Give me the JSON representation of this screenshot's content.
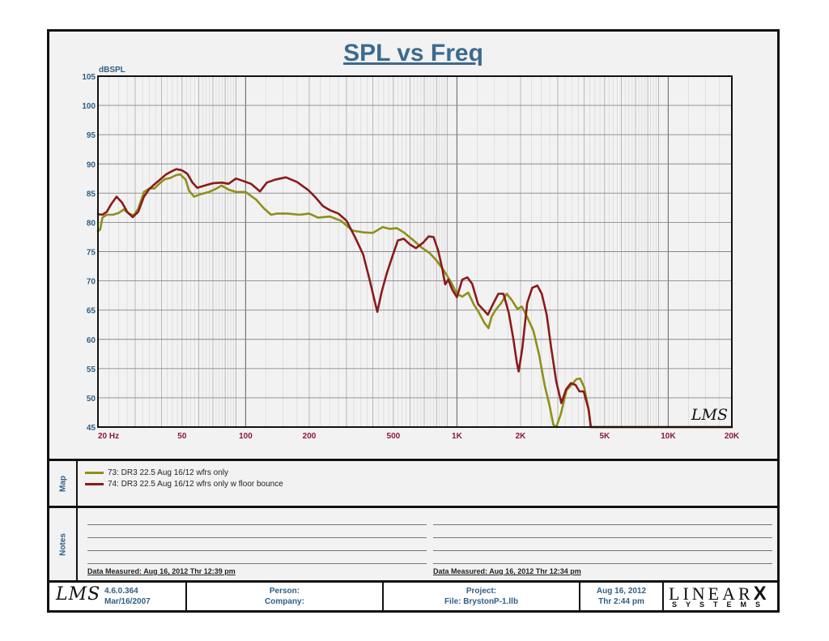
{
  "chart_data": {
    "type": "line",
    "title": "SPL vs Freq",
    "ylabel": "dBSPL",
    "xlabel": "",
    "x_scale": "log",
    "xlim": [
      20,
      20000
    ],
    "ylim": [
      45,
      105
    ],
    "grid": true,
    "x_ticks": [
      {
        "value": 20,
        "label": "20  Hz"
      },
      {
        "value": 50,
        "label": "50"
      },
      {
        "value": 100,
        "label": "100"
      },
      {
        "value": 200,
        "label": "200"
      },
      {
        "value": 500,
        "label": "500"
      },
      {
        "value": 1000,
        "label": "1K"
      },
      {
        "value": 2000,
        "label": "2K"
      },
      {
        "value": 5000,
        "label": "5K"
      },
      {
        "value": 10000,
        "label": "10K"
      },
      {
        "value": 20000,
        "label": "20K"
      }
    ],
    "y_ticks": [
      45,
      50,
      55,
      60,
      65,
      70,
      75,
      80,
      85,
      90,
      95,
      100,
      105
    ],
    "series": [
      {
        "name": "73: DR3 22.5 Aug 16/12 wfrs only",
        "color": "#8f8f1a",
        "points": [
          [
            20,
            78.5
          ],
          [
            20.5,
            78.8
          ],
          [
            21,
            80.8
          ],
          [
            22,
            81.3
          ],
          [
            23.5,
            81.3
          ],
          [
            25,
            81.6
          ],
          [
            26.5,
            82.2
          ],
          [
            28,
            81.5
          ],
          [
            29.5,
            81.2
          ],
          [
            31,
            82.3
          ],
          [
            33,
            85.2
          ],
          [
            35,
            85.8
          ],
          [
            37,
            85.8
          ],
          [
            39,
            86.6
          ],
          [
            41.5,
            87.4
          ],
          [
            44,
            87.6
          ],
          [
            47,
            88.1
          ],
          [
            49,
            88.2
          ],
          [
            52,
            87.3
          ],
          [
            54,
            85.4
          ],
          [
            57,
            84.4
          ],
          [
            61,
            84.8
          ],
          [
            67,
            85.2
          ],
          [
            72,
            85.7
          ],
          [
            77,
            86.3
          ],
          [
            83,
            85.6
          ],
          [
            90,
            85.2
          ],
          [
            100,
            85.2
          ],
          [
            112,
            83.9
          ],
          [
            122,
            82.4
          ],
          [
            132,
            81.3
          ],
          [
            140,
            81.5
          ],
          [
            158,
            81.5
          ],
          [
            180,
            81.3
          ],
          [
            200,
            81.5
          ],
          [
            220,
            80.8
          ],
          [
            250,
            81.0
          ],
          [
            282,
            80.3
          ],
          [
            320,
            78.6
          ],
          [
            360,
            78.3
          ],
          [
            400,
            78.2
          ],
          [
            445,
            79.2
          ],
          [
            480,
            78.9
          ],
          [
            520,
            79.0
          ],
          [
            560,
            78.3
          ],
          [
            620,
            77.0
          ],
          [
            680,
            75.7
          ],
          [
            740,
            74.8
          ],
          [
            800,
            73.5
          ],
          [
            870,
            71.7
          ],
          [
            940,
            69.7
          ],
          [
            1000,
            67.8
          ],
          [
            1060,
            67.3
          ],
          [
            1130,
            68.0
          ],
          [
            1200,
            66.0
          ],
          [
            1270,
            64.6
          ],
          [
            1350,
            62.8
          ],
          [
            1410,
            61.9
          ],
          [
            1460,
            63.9
          ],
          [
            1530,
            65.1
          ],
          [
            1620,
            66.2
          ],
          [
            1720,
            67.8
          ],
          [
            1820,
            66.7
          ],
          [
            1930,
            65.2
          ],
          [
            2030,
            65.6
          ],
          [
            2150,
            63.8
          ],
          [
            2300,
            61.5
          ],
          [
            2450,
            57.3
          ],
          [
            2600,
            52.2
          ],
          [
            2750,
            48.5
          ],
          [
            2860,
            45.4
          ],
          [
            2950,
            45.0
          ],
          [
            3100,
            47.2
          ],
          [
            3300,
            51.3
          ],
          [
            3480,
            52.2
          ],
          [
            3680,
            53.2
          ],
          [
            3830,
            53.3
          ],
          [
            4000,
            51.8
          ],
          [
            4120,
            49.5
          ],
          [
            4220,
            47.5
          ],
          [
            4300,
            45.0
          ],
          [
            20000,
            45.0
          ]
        ]
      },
      {
        "name": "74: DR3 22.5 Aug 16/12 wfrs only w floor bounce",
        "color": "#8b1a1a",
        "points": [
          [
            20,
            81.4
          ],
          [
            21,
            81.3
          ],
          [
            22,
            81.8
          ],
          [
            23.2,
            83.2
          ],
          [
            24.5,
            84.4
          ],
          [
            26,
            83.4
          ],
          [
            27.5,
            81.8
          ],
          [
            29.2,
            80.9
          ],
          [
            31,
            81.8
          ],
          [
            33,
            84.4
          ],
          [
            35,
            85.7
          ],
          [
            37,
            86.5
          ],
          [
            39.3,
            87.3
          ],
          [
            42,
            88.2
          ],
          [
            44.5,
            88.7
          ],
          [
            47,
            89.1
          ],
          [
            50,
            88.9
          ],
          [
            53,
            88.3
          ],
          [
            56,
            86.8
          ],
          [
            59,
            85.9
          ],
          [
            64,
            86.3
          ],
          [
            70,
            86.7
          ],
          [
            77,
            86.8
          ],
          [
            83,
            86.6
          ],
          [
            90,
            87.5
          ],
          [
            97,
            87.1
          ],
          [
            106,
            86.6
          ],
          [
            117,
            85.3
          ],
          [
            126,
            86.8
          ],
          [
            138,
            87.3
          ],
          [
            155,
            87.7
          ],
          [
            175,
            86.9
          ],
          [
            198,
            85.5
          ],
          [
            215,
            84.2
          ],
          [
            232,
            82.8
          ],
          [
            250,
            82.1
          ],
          [
            275,
            81.5
          ],
          [
            300,
            80.3
          ],
          [
            330,
            77.4
          ],
          [
            360,
            74.5
          ],
          [
            385,
            70.4
          ],
          [
            405,
            67.0
          ],
          [
            420,
            64.7
          ],
          [
            440,
            68.1
          ],
          [
            465,
            71.2
          ],
          [
            495,
            74.2
          ],
          [
            525,
            76.9
          ],
          [
            560,
            77.2
          ],
          [
            600,
            76.2
          ],
          [
            640,
            75.6
          ],
          [
            690,
            76.5
          ],
          [
            735,
            77.6
          ],
          [
            775,
            77.5
          ],
          [
            815,
            75.2
          ],
          [
            850,
            72.3
          ],
          [
            880,
            69.4
          ],
          [
            910,
            70.2
          ],
          [
            950,
            68.5
          ],
          [
            1000,
            67.2
          ],
          [
            1060,
            70.2
          ],
          [
            1120,
            70.6
          ],
          [
            1180,
            69.5
          ],
          [
            1260,
            66.0
          ],
          [
            1330,
            65.1
          ],
          [
            1400,
            64.2
          ],
          [
            1480,
            66.0
          ],
          [
            1570,
            67.8
          ],
          [
            1660,
            67.8
          ],
          [
            1760,
            64.5
          ],
          [
            1850,
            60.0
          ],
          [
            1920,
            56.0
          ],
          [
            1960,
            54.5
          ],
          [
            2040,
            58.5
          ],
          [
            2150,
            66.2
          ],
          [
            2270,
            68.8
          ],
          [
            2400,
            69.2
          ],
          [
            2520,
            67.8
          ],
          [
            2660,
            64.2
          ],
          [
            2800,
            58.3
          ],
          [
            2950,
            52.8
          ],
          [
            3120,
            49.1
          ],
          [
            3280,
            51.4
          ],
          [
            3460,
            52.5
          ],
          [
            3640,
            52.2
          ],
          [
            3800,
            51.1
          ],
          [
            3980,
            51.1
          ],
          [
            4200,
            48.0
          ],
          [
            4300,
            45.0
          ],
          [
            20000,
            45.0
          ]
        ]
      }
    ]
  },
  "logo_text": "LMS",
  "map": {
    "label": "Map",
    "entries": [
      {
        "label": "73: DR3 22.5 Aug 16/12 wfrs only",
        "color": "#8f8f1a"
      },
      {
        "label": "74: DR3 22.5 Aug 16/12 wfrs only w floor bounce",
        "color": "#8b1a1a"
      }
    ]
  },
  "notes": {
    "label": "Notes",
    "measured_left": "Data Measured: Aug 16, 2012  Thr 12:39 pm",
    "measured_right": "Data Measured: Aug 16, 2012  Thr 12:34 pm"
  },
  "footer": {
    "logo": "LMS",
    "version": "4.6.0.364",
    "version_date": "Mar/16/2007",
    "person_label": "Person:",
    "company_label": "Company:",
    "project_label": "Project:",
    "file_label": "File: BrystonP-1.llb",
    "date": "Aug 16, 2012",
    "time": "Thr  2:44 pm",
    "brand_top": "LINEAR",
    "brand_x": "X",
    "brand_bottom": "SYSTEMS"
  }
}
